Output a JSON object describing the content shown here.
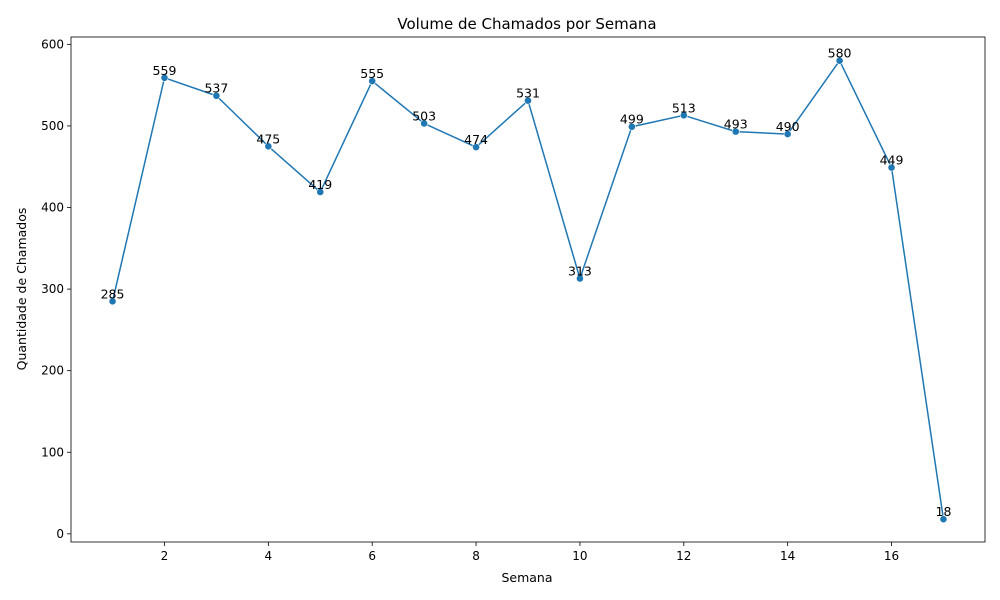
{
  "chart_data": {
    "type": "line",
    "title": "Volume de Chamados por Semana",
    "xlabel": "Semana",
    "ylabel": "Quantidade de Chamados",
    "x": [
      1,
      2,
      3,
      4,
      5,
      6,
      7,
      8,
      9,
      10,
      11,
      12,
      13,
      14,
      15,
      16,
      17
    ],
    "series": [
      {
        "values": [
          285,
          559,
          537,
          475,
          419,
          555,
          503,
          474,
          531,
          313,
          499,
          513,
          493,
          490,
          580,
          449,
          18
        ],
        "color": "#1f77b4",
        "marker": "circle"
      }
    ],
    "data_labels": [
      "285",
      "559",
      "537",
      "475",
      "419",
      "555",
      "503",
      "474",
      "531",
      "313",
      "499",
      "513",
      "493",
      "490",
      "580",
      "449",
      "18"
    ],
    "xlim": [
      0.2,
      17.8
    ],
    "ylim": [
      -10,
      609
    ],
    "xticks": [
      2,
      4,
      6,
      8,
      10,
      12,
      14,
      16
    ],
    "xtick_labels": [
      "2",
      "4",
      "6",
      "8",
      "10",
      "12",
      "14",
      "16"
    ],
    "yticks": [
      0,
      100,
      200,
      300,
      400,
      500,
      600
    ],
    "ytick_labels": [
      "0",
      "100",
      "200",
      "300",
      "400",
      "500",
      "600"
    ],
    "grid": false,
    "legend": "none"
  }
}
